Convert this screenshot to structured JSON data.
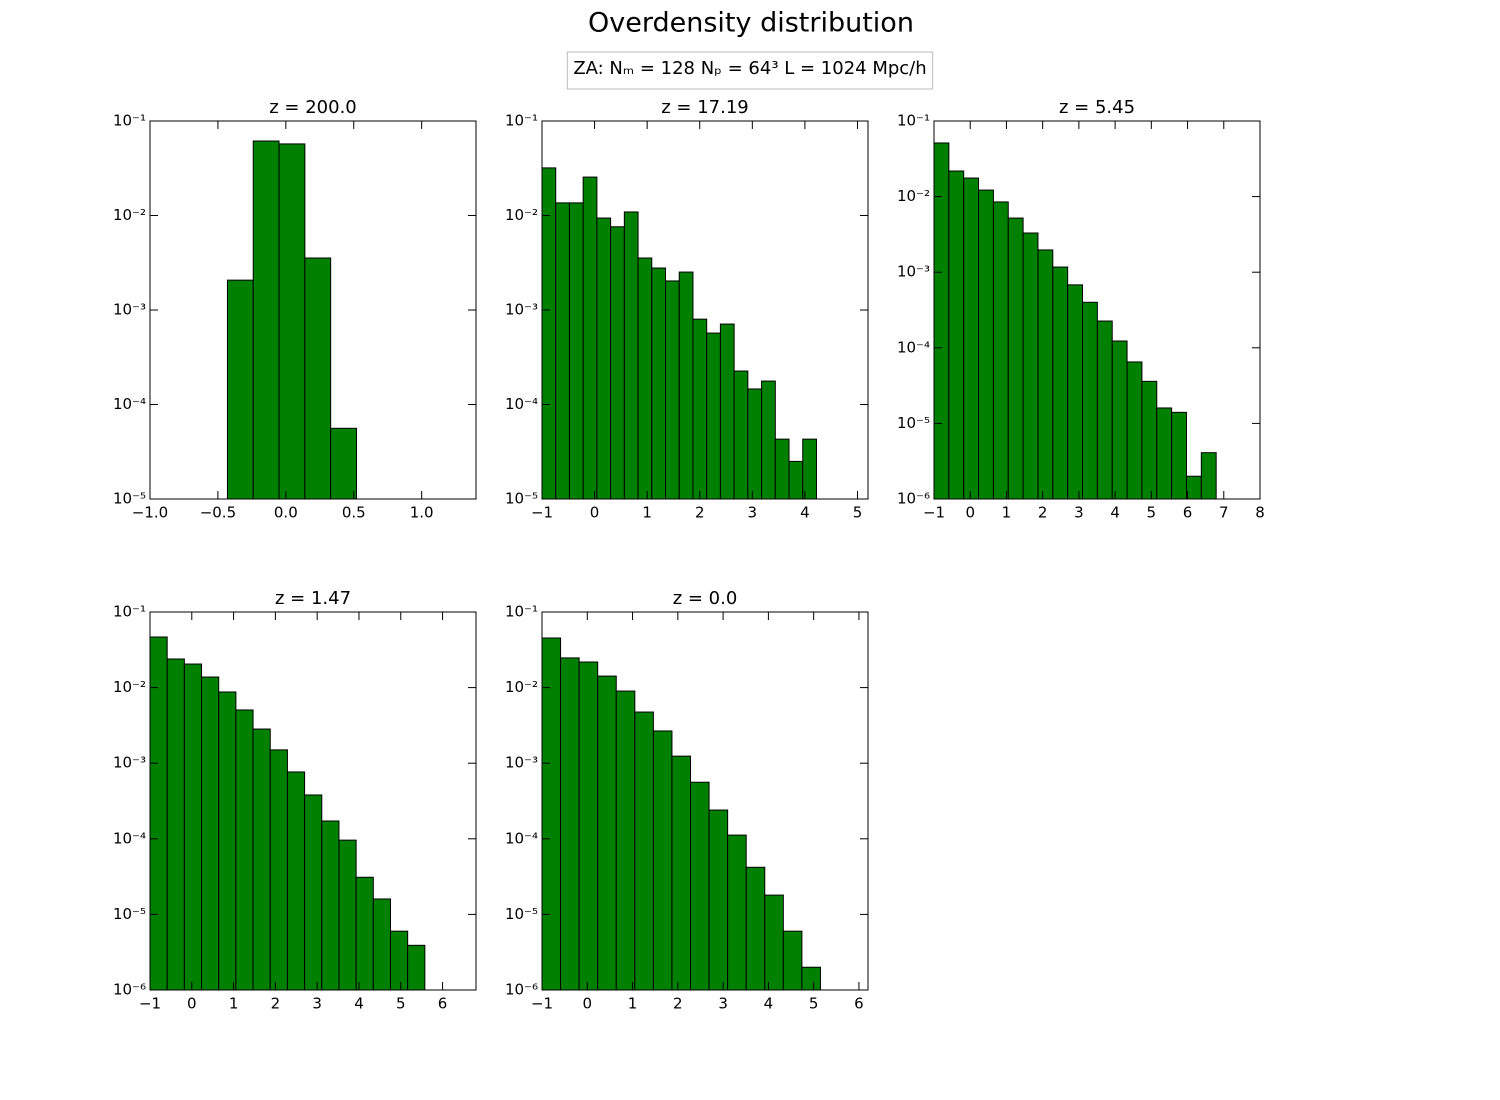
{
  "title": "Overdensity distribution",
  "subtitle": "ZA:  Nₘ = 128   Nₚ = 64³   L = 1024 Mpc/h",
  "chart_data": [
    {
      "type": "histogram",
      "title": "z = 200.0",
      "color": "#008000",
      "log_y": true,
      "bins": [
        -0.43,
        -0.24,
        -0.05,
        0.14,
        0.33,
        0.52
      ],
      "counts": [
        0.00207,
        0.0614,
        0.0572,
        0.00355,
        5.6e-05
      ],
      "xlim": [
        -1.0,
        1.4
      ],
      "xticks": [
        {
          "value": -1.0,
          "label": "−1.0"
        },
        {
          "value": -0.5,
          "label": "−0.5"
        },
        {
          "value": 0.0,
          "label": "0.0"
        },
        0.5,
        {
          "value": 1.0,
          "label": "1.0"
        }
      ],
      "ylim": [
        1e-05,
        0.1
      ],
      "yticks": [
        {
          "value": 1e-05,
          "label": "10⁻⁵"
        },
        {
          "value": 0.0001,
          "label": "10⁻⁴"
        },
        {
          "value": 0.001,
          "label": "10⁻³"
        },
        {
          "value": 0.01,
          "label": "10⁻²"
        },
        {
          "value": 0.1,
          "label": "10⁻¹"
        }
      ]
    },
    {
      "type": "histogram",
      "title": "z = 17.19",
      "color": "#008000",
      "log_y": true,
      "bins": [
        -1,
        -0.739,
        -0.478,
        -0.217,
        0.044,
        0.305,
        0.566,
        0.827,
        1.088,
        1.349,
        1.61,
        1.871,
        2.132,
        2.393,
        2.654,
        2.915,
        3.176,
        3.437,
        3.698,
        3.959,
        4.22
      ],
      "counts": [
        0.0319,
        0.0136,
        0.0136,
        0.0255,
        0.0094,
        0.0076,
        0.0109,
        0.00355,
        0.00278,
        0.00203,
        0.00252,
        0.0008,
        0.00057,
        0.00071,
        0.000226,
        0.000146,
        0.000177,
        4.3e-05,
        2.5e-05,
        4.3e-05
      ],
      "xlim": [
        -1,
        5.2
      ],
      "xticks": [
        {
          "value": -1,
          "label": "−1"
        },
        0,
        1,
        2,
        3,
        4,
        5
      ],
      "ylim": [
        1e-05,
        0.1
      ],
      "yticks": [
        {
          "value": 1e-05,
          "label": "10⁻⁵"
        },
        {
          "value": 0.0001,
          "label": "10⁻⁴"
        },
        {
          "value": 0.001,
          "label": "10⁻³"
        },
        {
          "value": 0.01,
          "label": "10⁻²"
        },
        {
          "value": 0.1,
          "label": "10⁻¹"
        }
      ]
    },
    {
      "type": "histogram",
      "title": "z = 5.45",
      "color": "#008000",
      "log_y": true,
      "bins": [
        -1,
        -0.59,
        -0.18,
        0.23,
        0.64,
        1.05,
        1.46,
        1.87,
        2.28,
        2.69,
        3.1,
        3.51,
        3.92,
        4.33,
        4.74,
        5.15,
        5.56,
        5.97,
        6.38,
        6.79
      ],
      "counts": [
        0.0512,
        0.0218,
        0.0176,
        0.0122,
        0.0085,
        0.0052,
        0.0033,
        0.00197,
        0.00117,
        0.00068,
        0.0004,
        0.000226,
        0.000123,
        6.5e-05,
        3.6e-05,
        1.6e-05,
        1.4e-05,
        2e-06,
        4.1e-06
      ],
      "xlim": [
        -1,
        8
      ],
      "xticks": [
        {
          "value": -1,
          "label": "−1"
        },
        0,
        1,
        2,
        3,
        4,
        5,
        6,
        7,
        8
      ],
      "ylim": [
        1e-06,
        0.1
      ],
      "yticks": [
        {
          "value": 1e-06,
          "label": "10⁻⁶"
        },
        {
          "value": 1e-05,
          "label": "10⁻⁵"
        },
        {
          "value": 0.0001,
          "label": "10⁻⁴"
        },
        {
          "value": 0.001,
          "label": "10⁻³"
        },
        {
          "value": 0.01,
          "label": "10⁻²"
        },
        {
          "value": 0.1,
          "label": "10⁻¹"
        }
      ]
    },
    {
      "type": "histogram",
      "title": "z = 1.47",
      "color": "#008000",
      "log_y": true,
      "bins": [
        -1,
        -0.589,
        -0.178,
        0.233,
        0.644,
        1.055,
        1.466,
        1.877,
        2.288,
        2.699,
        3.11,
        3.521,
        3.932,
        4.343,
        4.754,
        5.165,
        5.576
      ],
      "counts": [
        0.0467,
        0.0239,
        0.0205,
        0.0138,
        0.00875,
        0.00506,
        0.00283,
        0.0015,
        0.000766,
        0.00038,
        0.000172,
        9.6e-05,
        3.1e-05,
        1.6e-05,
        6e-06,
        3.9e-06
      ],
      "xlim": [
        -1,
        6.8
      ],
      "xticks": [
        {
          "value": -1,
          "label": "−1"
        },
        0,
        1,
        2,
        3,
        4,
        5,
        6
      ],
      "ylim": [
        1e-06,
        0.1
      ],
      "yticks": [
        {
          "value": 1e-06,
          "label": "10⁻⁶"
        },
        {
          "value": 1e-05,
          "label": "10⁻⁵"
        },
        {
          "value": 0.0001,
          "label": "10⁻⁴"
        },
        {
          "value": 0.001,
          "label": "10⁻³"
        },
        {
          "value": 0.01,
          "label": "10⁻²"
        },
        {
          "value": 0.1,
          "label": "10⁻¹"
        }
      ]
    },
    {
      "type": "histogram",
      "title": "z = 0.0",
      "color": "#008000",
      "log_y": true,
      "bins": [
        -1,
        -0.59,
        -0.18,
        0.23,
        0.64,
        1.05,
        1.46,
        1.87,
        2.28,
        2.69,
        3.1,
        3.51,
        3.92,
        4.33,
        4.74,
        5.15
      ],
      "counts": [
        0.0453,
        0.0247,
        0.0218,
        0.0142,
        0.009,
        0.00475,
        0.00267,
        0.00124,
        0.00056,
        0.00024,
        0.000112,
        4.2e-05,
        1.8e-05,
        6e-06,
        2e-06
      ],
      "xlim": [
        -1,
        6.2
      ],
      "xticks": [
        {
          "value": -1,
          "label": "−1"
        },
        0,
        1,
        2,
        3,
        4,
        5,
        6
      ],
      "ylim": [
        1e-06,
        0.1
      ],
      "yticks": [
        {
          "value": 1e-06,
          "label": "10⁻⁶"
        },
        {
          "value": 1e-05,
          "label": "10⁻⁵"
        },
        {
          "value": 0.0001,
          "label": "10⁻⁴"
        },
        {
          "value": 0.001,
          "label": "10⁻³"
        },
        {
          "value": 0.01,
          "label": "10⁻²"
        },
        {
          "value": 0.1,
          "label": "10⁻¹"
        }
      ]
    }
  ]
}
